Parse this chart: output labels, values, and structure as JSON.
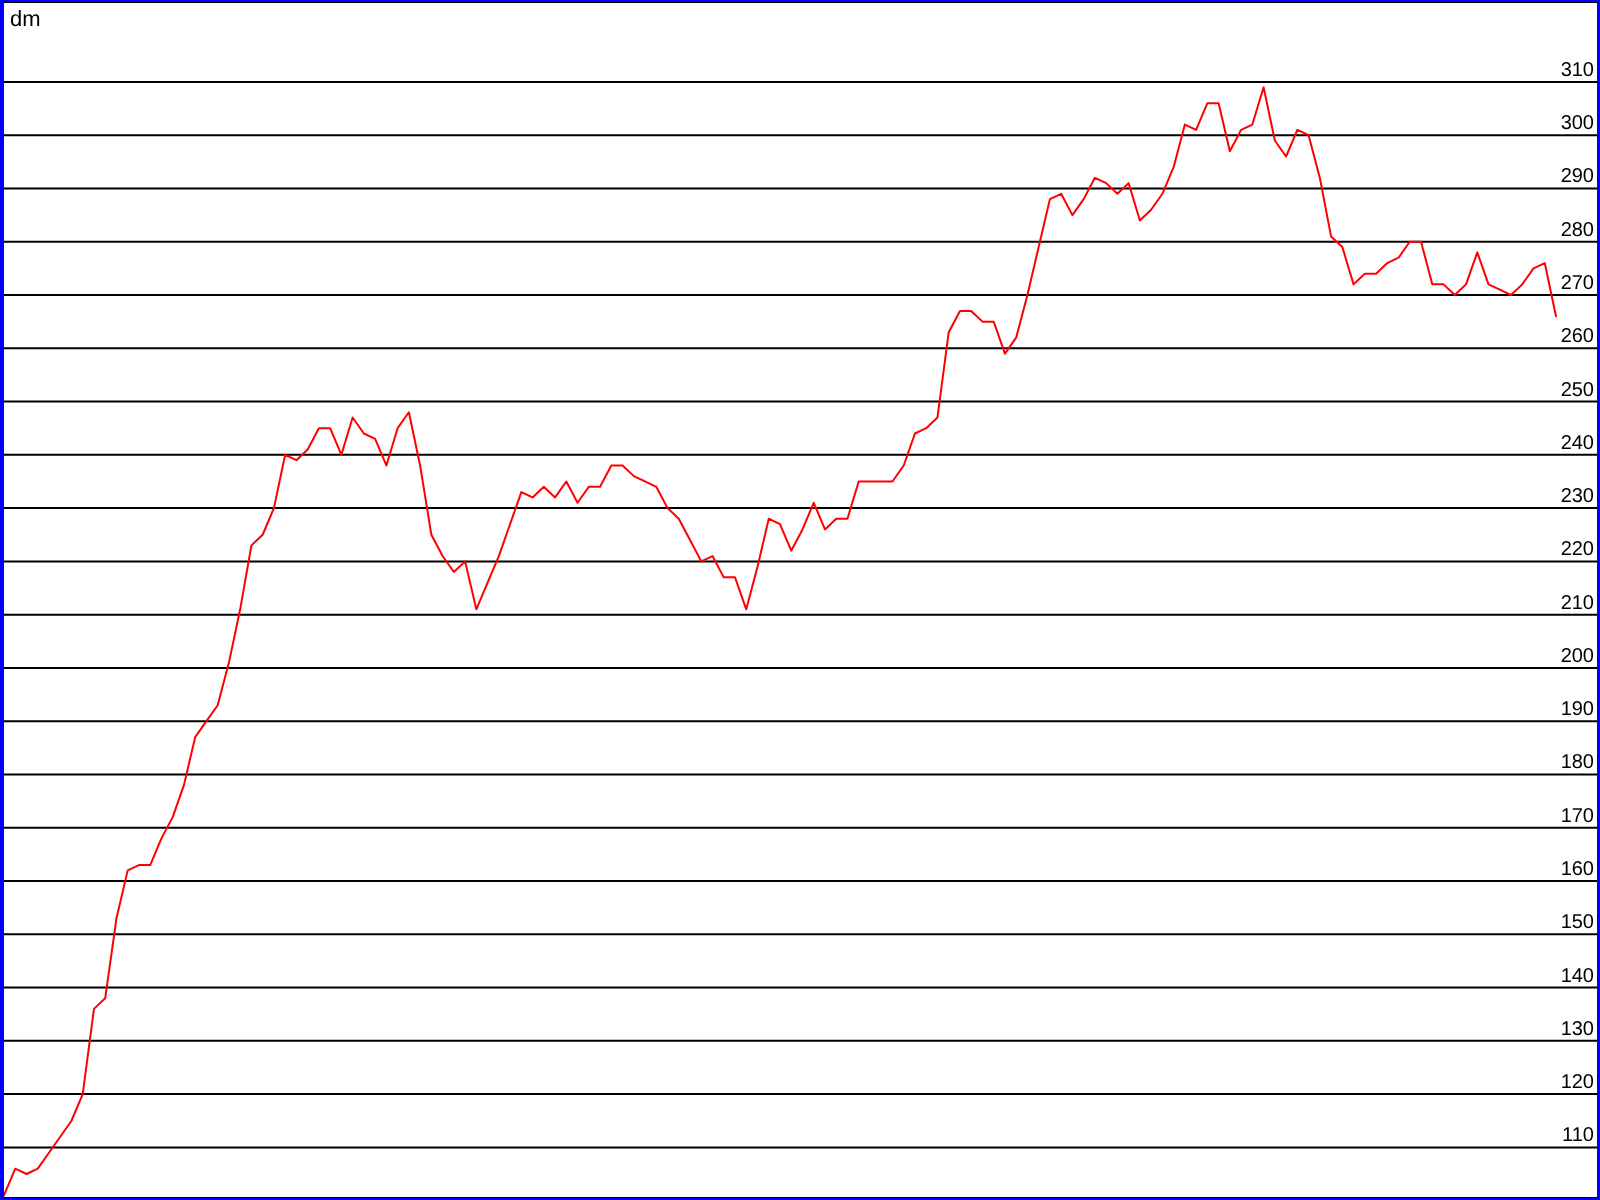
{
  "chart_data": {
    "type": "line",
    "ylabel": "dm",
    "categories": [
      null,
      null,
      null,
      null,
      null,
      null,
      null,
      null,
      null,
      null,
      null,
      null,
      null,
      null,
      null,
      null,
      null,
      null,
      null,
      null,
      null,
      null,
      null,
      null,
      null,
      null,
      null,
      null,
      null,
      null,
      null,
      null,
      null,
      null,
      null,
      null,
      null,
      null,
      null,
      null,
      null,
      null,
      null,
      null,
      null,
      null,
      null,
      null,
      null,
      null,
      null,
      null,
      null,
      null,
      null,
      null,
      null,
      null,
      null,
      null,
      null,
      null,
      null,
      null,
      null,
      null,
      null,
      null,
      null,
      null,
      null,
      null,
      null,
      null,
      null,
      null,
      null,
      null,
      null,
      null,
      null,
      null,
      null,
      null,
      null,
      null,
      null,
      null,
      null,
      null,
      null,
      null,
      null,
      null,
      null,
      null,
      null,
      null,
      null,
      null,
      null,
      null,
      null,
      null,
      null,
      null,
      null,
      null,
      null,
      null,
      null,
      null,
      null,
      null,
      null,
      null,
      null,
      null,
      null,
      null,
      null,
      null,
      null,
      null,
      null,
      null,
      null,
      null,
      null,
      null,
      null,
      null,
      null,
      null,
      null,
      null,
      null,
      null,
      null
    ],
    "series": [
      {
        "color": "#ff0000",
        "values": [
          101,
          106,
          105,
          106,
          109,
          112,
          115,
          120,
          136,
          138,
          153,
          162,
          163,
          163,
          168,
          172,
          178,
          187,
          190,
          193,
          201,
          211,
          223,
          225,
          230,
          240,
          239,
          241,
          245,
          245,
          240,
          247,
          244,
          243,
          238,
          245,
          248,
          238,
          225,
          221,
          218,
          220,
          211,
          216,
          221,
          227,
          233,
          232,
          234,
          232,
          235,
          231,
          234,
          234,
          238,
          238,
          236,
          235,
          234,
          230,
          228,
          224,
          220,
          221,
          217,
          217,
          211,
          219,
          228,
          227,
          222,
          226,
          231,
          226,
          228,
          228,
          235,
          235,
          235,
          235,
          238,
          244,
          245,
          247,
          263,
          267,
          267,
          265,
          265,
          259,
          262,
          270,
          279,
          288,
          289,
          285,
          288,
          292,
          291,
          289,
          291,
          284,
          286,
          289,
          294,
          302,
          301,
          306,
          306,
          297,
          301,
          302,
          309,
          299,
          296,
          301,
          300,
          292,
          281,
          279,
          272,
          274,
          274,
          276,
          277,
          280,
          280,
          272,
          272,
          270,
          272,
          278,
          272,
          271,
          270,
          272,
          275,
          276,
          266
        ]
      }
    ],
    "ylim": [
      100.5,
      325
    ],
    "yticks": [
      110,
      120,
      130,
      140,
      150,
      160,
      170,
      180,
      190,
      200,
      210,
      220,
      230,
      240,
      250,
      260,
      270,
      280,
      290,
      300,
      310
    ],
    "grid": "y",
    "tick_labels": "y",
    "marker": "none",
    "line_style": "solid"
  }
}
